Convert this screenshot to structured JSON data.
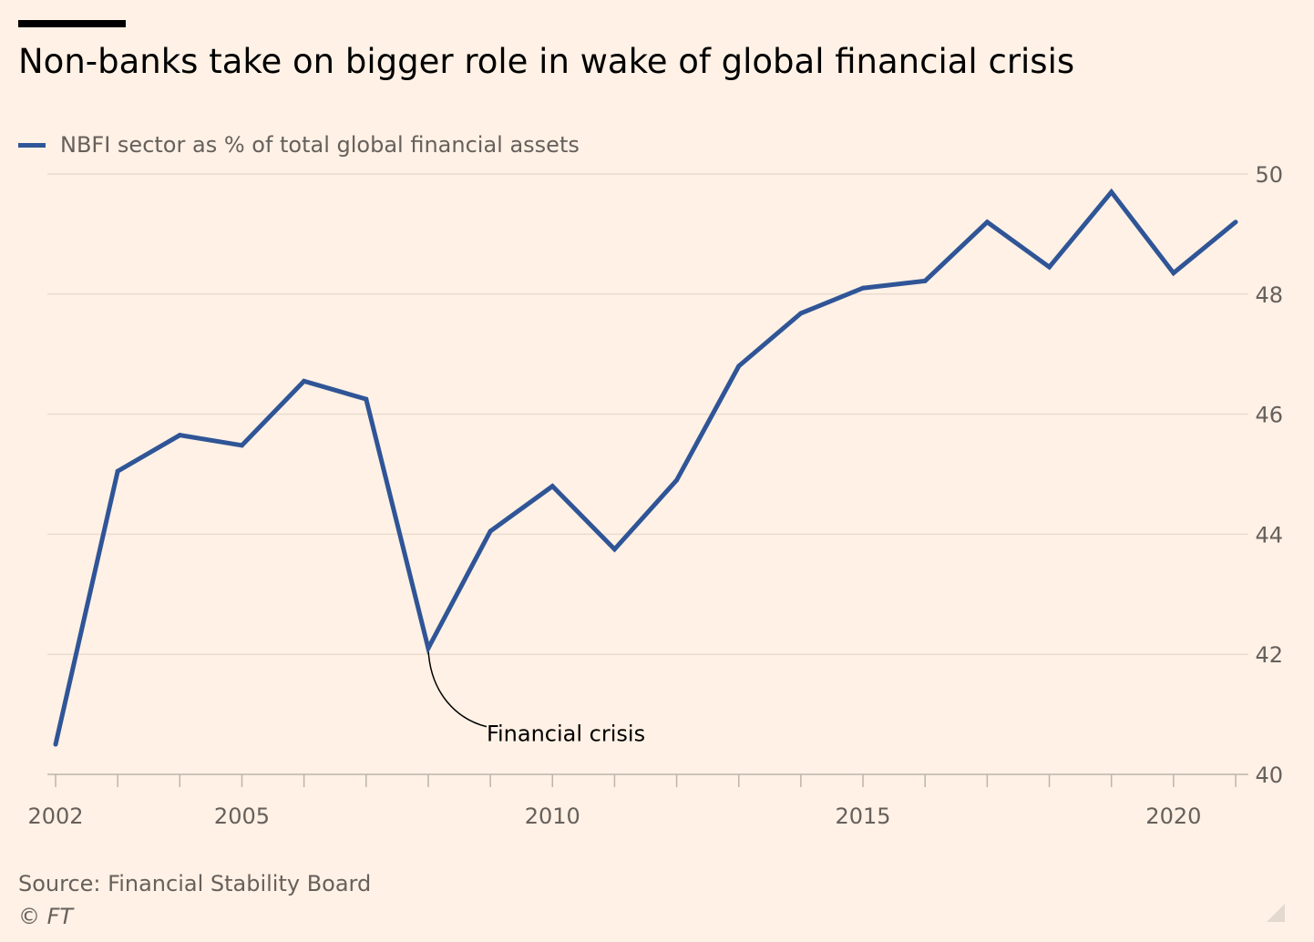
{
  "chart_data": {
    "type": "line",
    "title": "Non-banks take on bigger role in wake of global financial crisis",
    "legend": {
      "placement": "top-left",
      "entries": [
        "NBFI sector as % of total global financial assets"
      ]
    },
    "series": [
      {
        "name": "NBFI sector as % of total global financial assets",
        "color": "#2f5597",
        "x": [
          2002,
          2003,
          2004,
          2005,
          2006,
          2007,
          2008,
          2009,
          2010,
          2011,
          2012,
          2013,
          2014,
          2015,
          2016,
          2017,
          2018,
          2019,
          2020,
          2021
        ],
        "values": [
          40.5,
          45.05,
          45.65,
          45.48,
          46.55,
          46.25,
          42.1,
          44.05,
          44.8,
          43.75,
          44.9,
          46.8,
          47.68,
          48.1,
          48.22,
          49.2,
          48.45,
          49.7,
          48.35,
          49.2
        ]
      }
    ],
    "xlim": [
      2002,
      2021
    ],
    "ylim": [
      40,
      50
    ],
    "x_tick_labels": [
      "2002",
      "2005",
      "2010",
      "2015",
      "2020"
    ],
    "y_tick_labels": [
      "40",
      "42",
      "44",
      "46",
      "48",
      "50"
    ],
    "y_axis_position": "right",
    "grid": "horizontal",
    "annotations": [
      {
        "text": "Financial crisis",
        "x": 2008,
        "y": 42.1
      }
    ]
  },
  "footer": {
    "source": "Source: Financial Stability Board",
    "copyright": "© FT"
  }
}
